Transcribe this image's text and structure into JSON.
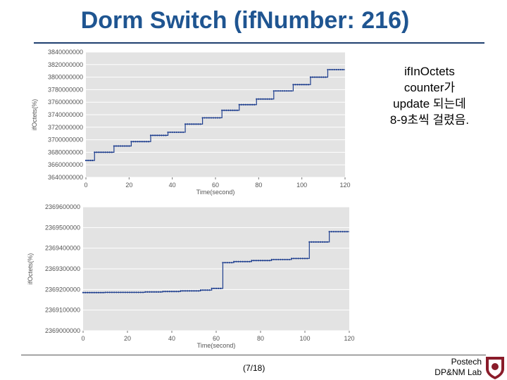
{
  "slide": {
    "title": "Dorm Switch (ifNumber: 216)",
    "note_lines": [
      "ifInOctets",
      "counter가",
      "update 되는데",
      "8-9초씩 걸렸음."
    ],
    "page": "(7/18)",
    "org_line1": "Postech",
    "org_line2": "DP&NM Lab"
  },
  "colors": {
    "title": "#1f5591",
    "series": "#1f3f8f",
    "plot_bg": "#e3e3e3",
    "grid": "#ffffff"
  },
  "chart_data": [
    {
      "type": "line",
      "title": "",
      "xlabel": "Time(second)",
      "ylabel": "ifOctets(%)",
      "xlim": [
        0,
        120
      ],
      "ylim": [
        3640000000,
        3840000000
      ],
      "x_ticks": [
        0,
        20,
        40,
        60,
        80,
        100,
        120
      ],
      "x_tick_labels": [
        "0",
        "20",
        "40",
        "60",
        "80",
        "100",
        "120"
      ],
      "y_ticks": [
        3640000000,
        3660000000,
        3680000000,
        3700000000,
        3720000000,
        3740000000,
        3760000000,
        3780000000,
        3800000000,
        3820000000,
        3840000000
      ],
      "y_tick_labels": [
        "3640000000",
        "3660000000",
        "3680000000",
        "3700000000",
        "3720000000",
        "3740000000",
        "3760000000",
        "3780000000",
        "3800000000",
        "3820000000",
        "3840000000"
      ],
      "grid": true,
      "legend": "none",
      "steps": [
        {
          "x0": 0,
          "x1": 4,
          "y": 3667000000
        },
        {
          "x0": 4,
          "x1": 13,
          "y": 3680000000
        },
        {
          "x0": 13,
          "x1": 21,
          "y": 3690000000
        },
        {
          "x0": 21,
          "x1": 30,
          "y": 3697000000
        },
        {
          "x0": 30,
          "x1": 38,
          "y": 3707000000
        },
        {
          "x0": 38,
          "x1": 46,
          "y": 3712000000
        },
        {
          "x0": 46,
          "x1": 54,
          "y": 3725000000
        },
        {
          "x0": 54,
          "x1": 63,
          "y": 3735000000
        },
        {
          "x0": 63,
          "x1": 71,
          "y": 3747000000
        },
        {
          "x0": 71,
          "x1": 79,
          "y": 3756000000
        },
        {
          "x0": 79,
          "x1": 87,
          "y": 3765000000
        },
        {
          "x0": 87,
          "x1": 96,
          "y": 3778000000
        },
        {
          "x0": 96,
          "x1": 104,
          "y": 3788000000
        },
        {
          "x0": 104,
          "x1": 112,
          "y": 3800000000
        },
        {
          "x0": 112,
          "x1": 120,
          "y": 3812000000
        }
      ]
    },
    {
      "type": "line",
      "title": "",
      "xlabel": "Time(second)",
      "ylabel": "ifOctets(%)",
      "xlim": [
        0,
        120
      ],
      "ylim": [
        2369000000,
        2369600000
      ],
      "x_ticks": [
        0,
        20,
        40,
        60,
        80,
        100,
        120
      ],
      "x_tick_labels": [
        "0",
        "20",
        "40",
        "60",
        "80",
        "100",
        "120"
      ],
      "y_ticks": [
        2369000000,
        2369100000,
        2369200000,
        2369300000,
        2369400000,
        2369500000,
        2369600000
      ],
      "y_tick_labels": [
        "2369000000",
        "2369100000",
        "2369200000",
        "2369300000",
        "2369400000",
        "2369500000",
        "2369600000"
      ],
      "grid": true,
      "legend": "none",
      "steps": [
        {
          "x0": 0,
          "x1": 10,
          "y": 2369185000
        },
        {
          "x0": 10,
          "x1": 28,
          "y": 2369186000
        },
        {
          "x0": 28,
          "x1": 36,
          "y": 2369188000
        },
        {
          "x0": 36,
          "x1": 44,
          "y": 2369190000
        },
        {
          "x0": 44,
          "x1": 53,
          "y": 2369193000
        },
        {
          "x0": 53,
          "x1": 58,
          "y": 2369197000
        },
        {
          "x0": 58,
          "x1": 63,
          "y": 2369205000
        },
        {
          "x0": 63,
          "x1": 68,
          "y": 2369330000
        },
        {
          "x0": 68,
          "x1": 76,
          "y": 2369335000
        },
        {
          "x0": 76,
          "x1": 85,
          "y": 2369340000
        },
        {
          "x0": 85,
          "x1": 94,
          "y": 2369345000
        },
        {
          "x0": 94,
          "x1": 102,
          "y": 2369350000
        },
        {
          "x0": 102,
          "x1": 111,
          "y": 2369430000
        },
        {
          "x0": 111,
          "x1": 120,
          "y": 2369480000
        }
      ]
    }
  ]
}
